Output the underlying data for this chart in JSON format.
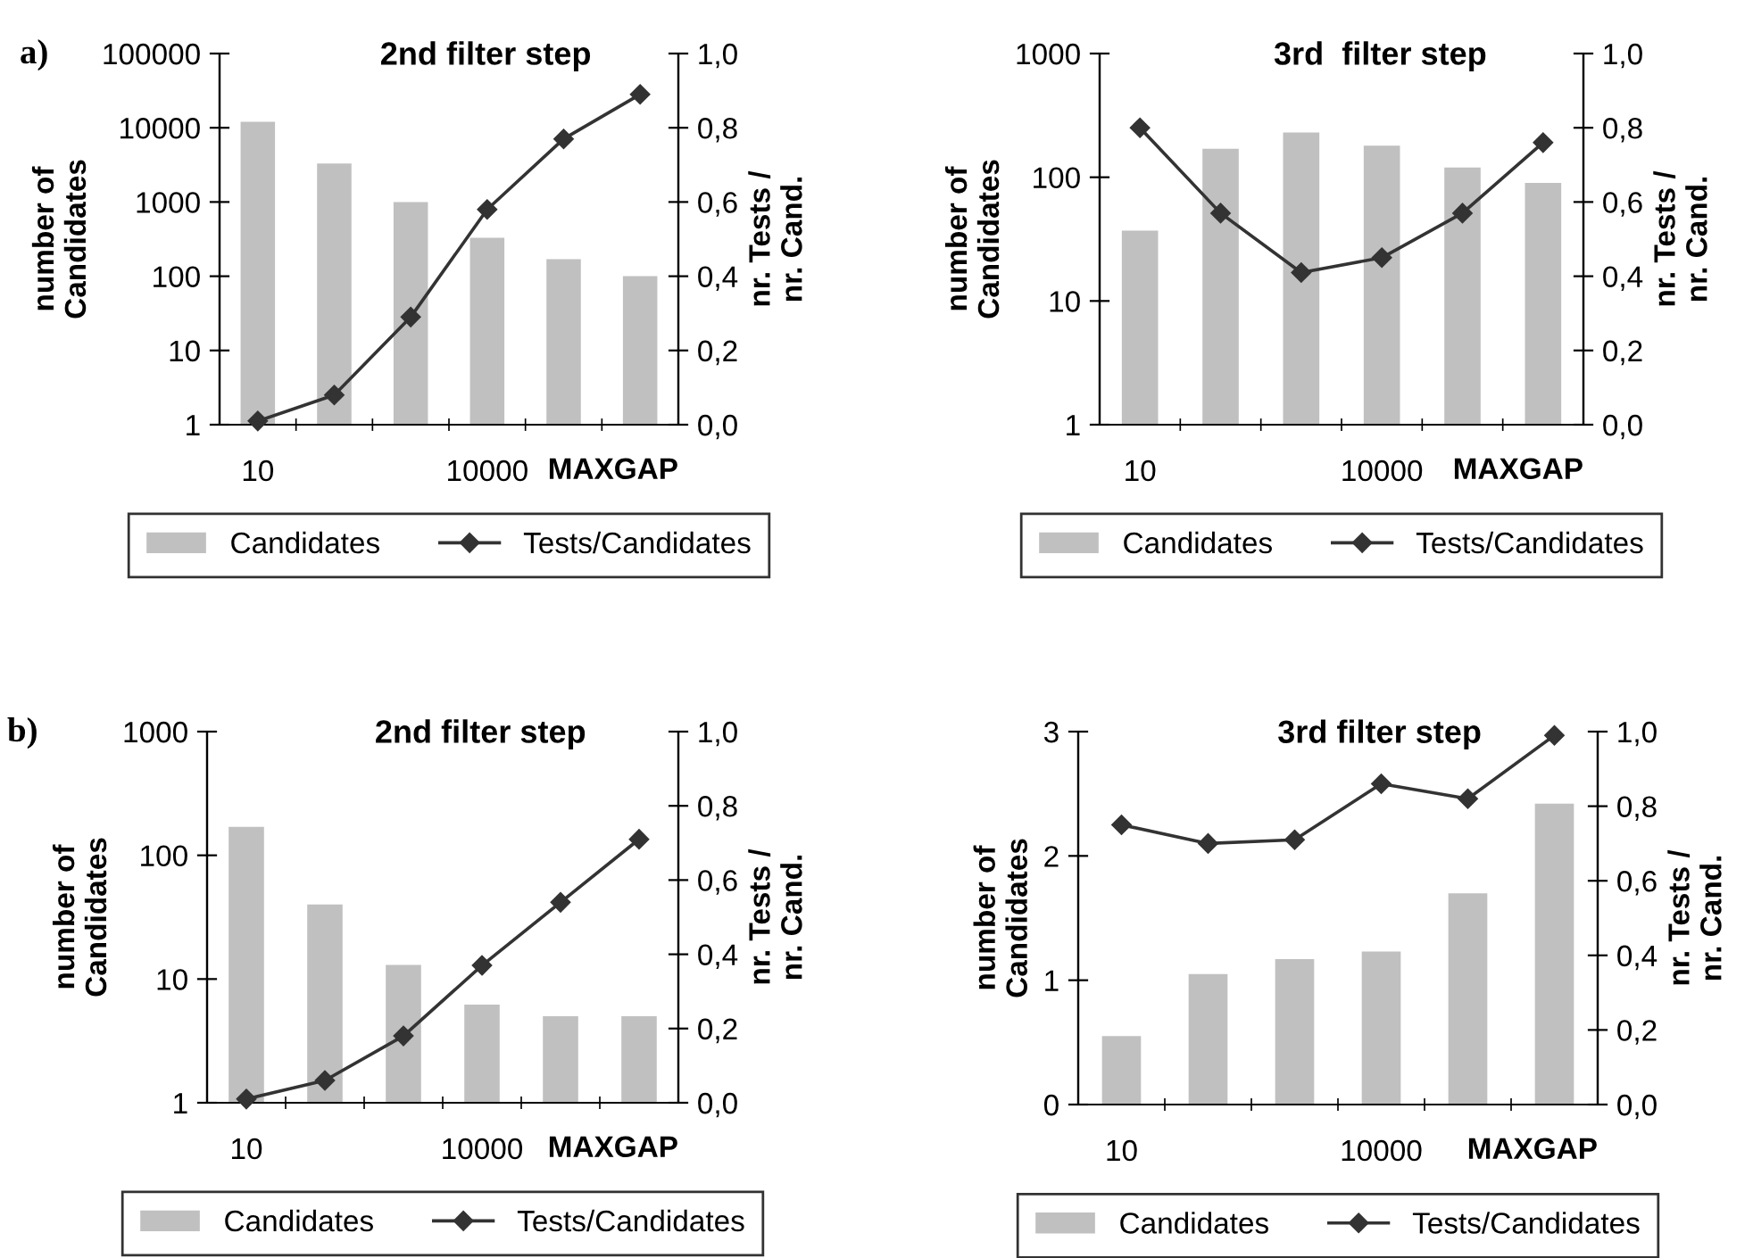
{
  "chart_data": [
    {
      "type": "bar",
      "title": "2nd filter step",
      "xlabel": "MAXGAP",
      "ylabel": "number of\nCandidates",
      "y2label": "nr. Tests /\nnr. Cand.",
      "annotations": [
        "a)"
      ],
      "categories": [
        "10",
        null,
        null,
        "10000",
        null,
        null
      ],
      "series": [
        {
          "name": "Candidates",
          "color": "#c0c0c0",
          "values": [
            12000,
            3300,
            1000,
            330,
            170,
            100
          ]
        },
        {
          "name": "Tests/Candidates",
          "type": "line",
          "axis": "y2",
          "color": "#333333",
          "values": [
            0.01,
            0.08,
            0.29,
            0.58,
            0.77,
            0.89
          ]
        }
      ],
      "log": "y",
      "ylim": [
        1,
        100000
      ],
      "yticks": [
        1,
        10,
        100,
        1000,
        10000,
        100000
      ],
      "y2lim": [
        0,
        1
      ],
      "y2ticks": [
        {
          "value": 0,
          "label": "0,0"
        },
        {
          "value": 0.2,
          "label": "0,2"
        },
        {
          "value": 0.4,
          "label": "0,4"
        },
        {
          "value": 0.6,
          "label": "0,6"
        },
        {
          "value": 0.8,
          "label": "0,8"
        },
        {
          "value": 1,
          "label": "1,0"
        }
      ],
      "legend": "bottom",
      "marker": "diamond",
      "grid": false
    },
    {
      "type": "bar",
      "title": "3rd  filter step",
      "xlabel": "MAXGAP",
      "ylabel": "number of\nCandidates",
      "y2label": "nr. Tests /\nnr. Cand.",
      "categories": [
        "10",
        null,
        null,
        "10000",
        null,
        null
      ],
      "series": [
        {
          "name": "Candidates",
          "color": "#c0c0c0",
          "values": [
            37,
            170,
            230,
            180,
            120,
            90
          ]
        },
        {
          "name": "Tests/Candidates",
          "type": "line",
          "axis": "y2",
          "color": "#333333",
          "values": [
            0.8,
            0.57,
            0.41,
            0.45,
            0.57,
            0.76
          ]
        }
      ],
      "log": "y",
      "ylim": [
        1,
        1000
      ],
      "yticks": [
        1,
        10,
        100,
        1000
      ],
      "y2lim": [
        0,
        1
      ],
      "y2ticks": [
        {
          "value": 0,
          "label": "0,0"
        },
        {
          "value": 0.2,
          "label": "0,2"
        },
        {
          "value": 0.4,
          "label": "0,4"
        },
        {
          "value": 0.6,
          "label": "0,6"
        },
        {
          "value": 0.8,
          "label": "0,8"
        },
        {
          "value": 1,
          "label": "1,0"
        }
      ],
      "legend": "bottom",
      "marker": "diamond",
      "grid": false
    },
    {
      "type": "bar",
      "title": "2nd filter step",
      "xlabel": "MAXGAP",
      "ylabel": "number of\nCandidates",
      "y2label": "nr. Tests /\nnr. Cand.",
      "annotations": [
        "b)"
      ],
      "categories": [
        "10",
        null,
        null,
        "10000",
        null,
        null
      ],
      "series": [
        {
          "name": "Candidates",
          "color": "#c0c0c0",
          "values": [
            170,
            40,
            13,
            6.2,
            5,
            5
          ]
        },
        {
          "name": "Tests/Candidates",
          "type": "line",
          "axis": "y2",
          "color": "#333333",
          "values": [
            0.01,
            0.06,
            0.18,
            0.37,
            0.54,
            0.71
          ]
        }
      ],
      "log": "y",
      "ylim": [
        1,
        1000
      ],
      "yticks": [
        1,
        10,
        100,
        1000
      ],
      "y2lim": [
        0,
        1
      ],
      "y2ticks": [
        {
          "value": 0,
          "label": "0,0"
        },
        {
          "value": 0.2,
          "label": "0,2"
        },
        {
          "value": 0.4,
          "label": "0,4"
        },
        {
          "value": 0.6,
          "label": "0,6"
        },
        {
          "value": 0.8,
          "label": "0,8"
        },
        {
          "value": 1,
          "label": "1,0"
        }
      ],
      "legend": "bottom",
      "marker": "diamond",
      "grid": false
    },
    {
      "type": "bar",
      "title": "3rd filter step",
      "xlabel": "MAXGAP",
      "ylabel": "number of\nCandidates",
      "y2label": "nr. Tests /\nnr. Cand.",
      "categories": [
        "10",
        null,
        null,
        "10000",
        null,
        null
      ],
      "series": [
        {
          "name": "Candidates",
          "color": "#c0c0c0",
          "values": [
            0.55,
            1.05,
            1.17,
            1.23,
            1.7,
            2.42
          ]
        },
        {
          "name": "Tests/Candidates",
          "type": "line",
          "axis": "y2",
          "color": "#333333",
          "values": [
            0.75,
            0.7,
            0.71,
            0.86,
            0.82,
            0.99
          ]
        }
      ],
      "ylim": [
        0,
        3
      ],
      "yticks": [
        0,
        1,
        2,
        3
      ],
      "y2lim": [
        0,
        1
      ],
      "y2ticks": [
        {
          "value": 0,
          "label": "0,0"
        },
        {
          "value": 0.2,
          "label": "0,2"
        },
        {
          "value": 0.4,
          "label": "0,4"
        },
        {
          "value": 0.6,
          "label": "0,6"
        },
        {
          "value": 0.8,
          "label": "0,8"
        },
        {
          "value": 1,
          "label": "1,0"
        }
      ],
      "legend": "bottom",
      "marker": "diamond",
      "grid": false
    }
  ]
}
